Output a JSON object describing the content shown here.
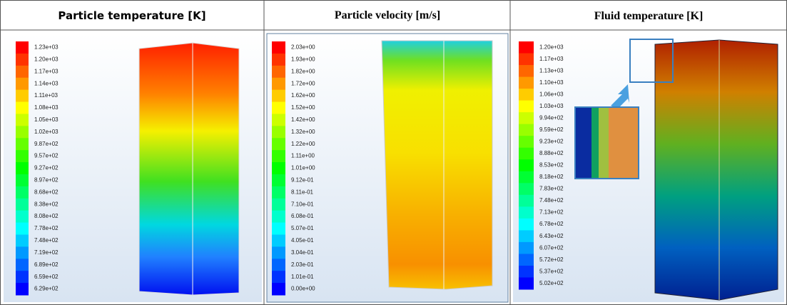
{
  "panels": [
    {
      "title": "Particle temperature [K]",
      "legend": [
        "1.23e+03",
        "1.20e+03",
        "1.17e+03",
        "1.14e+03",
        "1.11e+03",
        "1.08e+03",
        "1.05e+03",
        "1.02e+03",
        "9.87e+02",
        "9.57e+02",
        "9.27e+02",
        "8.97e+02",
        "8.68e+02",
        "8.38e+02",
        "8.08e+02",
        "7.78e+02",
        "7.48e+02",
        "7.19e+02",
        "6.89e+02",
        "6.59e+02",
        "6.29e+02"
      ]
    },
    {
      "title": "Particle velocity [m/s]",
      "legend": [
        "2.03e+00",
        "1.93e+00",
        "1.82e+00",
        "1.72e+00",
        "1.62e+00",
        "1.52e+00",
        "1.42e+00",
        "1.32e+00",
        "1.22e+00",
        "1.11e+00",
        "1.01e+00",
        "9.12e-01",
        "8.11e-01",
        "7.10e-01",
        "6.08e-01",
        "5.07e-01",
        "4.05e-01",
        "3.04e-01",
        "2.03e-01",
        "1.01e-01",
        "0.00e+00"
      ]
    },
    {
      "title": "Fluid temperature [K]",
      "legend": [
        "1.20e+03",
        "1.17e+03",
        "1.13e+03",
        "1.10e+03",
        "1.06e+03",
        "1.03e+03",
        "9.94e+02",
        "9.59e+02",
        "9.23e+02",
        "8.88e+02",
        "8.53e+02",
        "8.18e+02",
        "7.83e+02",
        "7.48e+02",
        "7.13e+02",
        "6.78e+02",
        "6.43e+02",
        "6.07e+02",
        "5.72e+02",
        "5.37e+02",
        "5.02e+02"
      ]
    }
  ]
}
